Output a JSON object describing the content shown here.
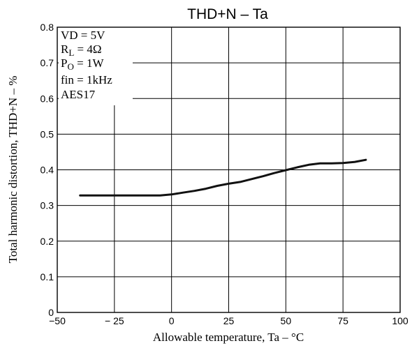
{
  "chart_data": {
    "type": "line",
    "title": "THD+N  –  Ta",
    "xlabel": "Allowable temperature, Ta  –  °C",
    "ylabel": "Total harmonic distortion, THD+N  –  %",
    "xlim": [
      -50,
      100
    ],
    "ylim": [
      0,
      0.8
    ],
    "x_ticks": [
      -50,
      -25,
      0,
      25,
      50,
      75,
      100
    ],
    "x_tick_labels": [
      "−50",
      "− 25",
      "0",
      "25",
      "50",
      "75",
      "100"
    ],
    "y_ticks": [
      0,
      0.1,
      0.2,
      0.3,
      0.4,
      0.5,
      0.6,
      0.7,
      0.8
    ],
    "y_tick_labels": [
      "0",
      "0.1",
      "0.2",
      "0.3",
      "0.4",
      "0.5",
      "0.6",
      "0.7",
      "0.8"
    ],
    "grid": true,
    "conditions": {
      "vd": {
        "base": "VD = 5V"
      },
      "rl": {
        "base": "R",
        "sub": "L",
        "rest": " = 4Ω"
      },
      "po": {
        "base": "P",
        "sub": "O",
        "rest": " = 1W"
      },
      "fin": {
        "base": "fin = 1kHz"
      },
      "aes": {
        "base": "AES17"
      }
    },
    "series": [
      {
        "x": [
          -40,
          -30,
          -20,
          -10,
          -5,
          0,
          5,
          10,
          15,
          20,
          25,
          30,
          35,
          40,
          45,
          50,
          55,
          60,
          65,
          70,
          75,
          80,
          85
        ],
        "y": [
          0.328,
          0.328,
          0.328,
          0.328,
          0.328,
          0.331,
          0.336,
          0.341,
          0.347,
          0.355,
          0.361,
          0.366,
          0.374,
          0.382,
          0.391,
          0.399,
          0.407,
          0.414,
          0.418,
          0.418,
          0.419,
          0.422,
          0.428
        ]
      }
    ],
    "colors": {
      "line": "#111111",
      "grid": "#000000",
      "axis": "#000000"
    }
  }
}
